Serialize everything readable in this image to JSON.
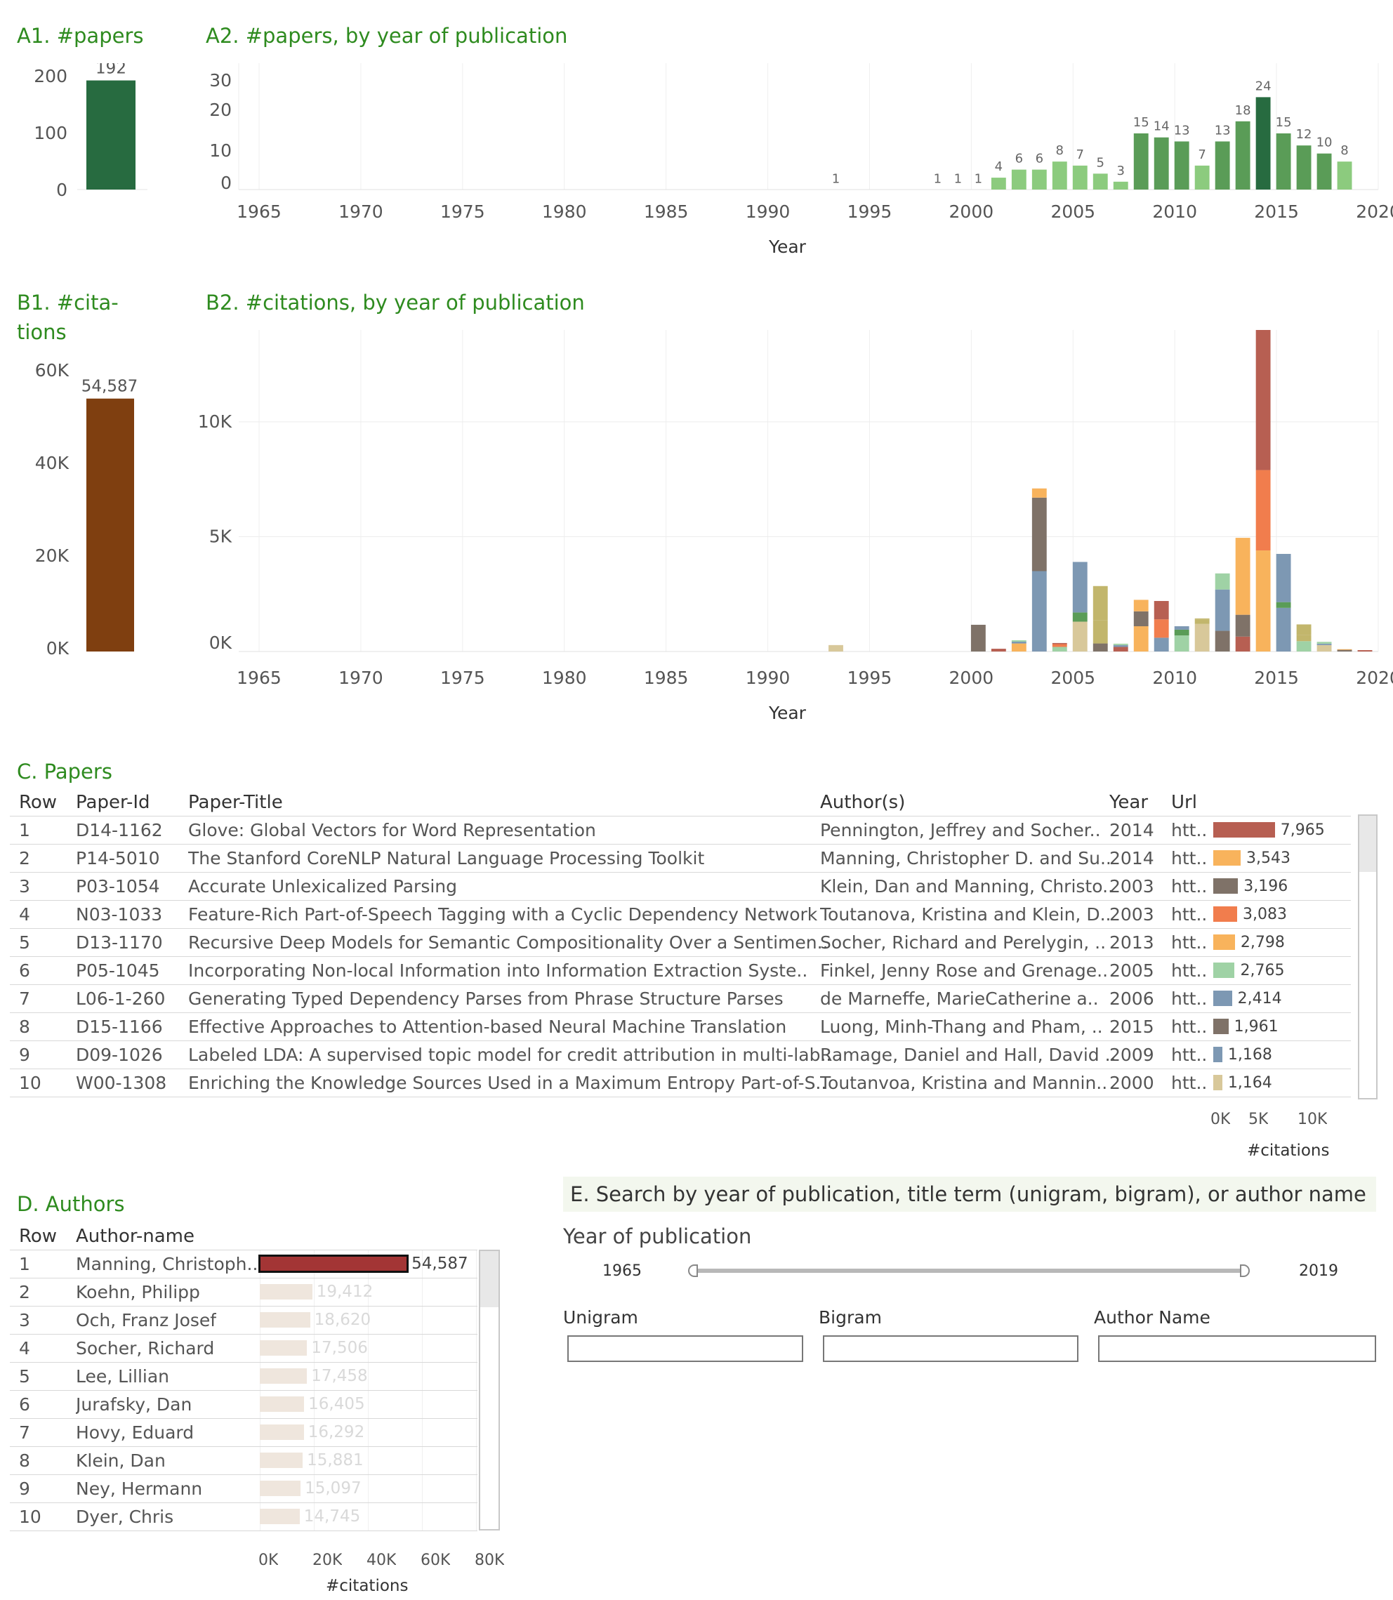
{
  "panels": {
    "a1_title": "A1. #papers",
    "a2_title": "A2. #papers, by year of publication",
    "b1_title_line1": "B1. #cita-",
    "b1_title_line2": "tions",
    "b2_title": "B2. #citations, by year of publication",
    "c_title": "C. Papers",
    "d_title": "D. Authors",
    "e_title": "E. Search by year of publication, title term (unigram, bigram), or  author name"
  },
  "colors": {
    "title_green": "#2e8b1f",
    "papers_total": "#276b40",
    "citations_total": "#7f3f10",
    "author_highlight": "#a33535",
    "author_faded": "#efe6dd"
  },
  "chart_data": [
    {
      "id": "A1",
      "type": "bar",
      "categories": [
        ""
      ],
      "values": [
        192
      ],
      "data_labels": [
        "192"
      ],
      "yticks": [
        "0",
        "100",
        "200"
      ],
      "ylim": [
        0,
        210
      ]
    },
    {
      "id": "A2",
      "type": "bar",
      "x": [
        1993,
        1998,
        1999,
        2000,
        2001,
        2002,
        2003,
        2004,
        2005,
        2006,
        2007,
        2008,
        2009,
        2010,
        2011,
        2012,
        2013,
        2014,
        2015,
        2016,
        2017,
        2018
      ],
      "values": [
        1,
        1,
        1,
        1,
        4,
        6,
        6,
        8,
        7,
        5,
        3,
        15,
        14,
        13,
        7,
        13,
        18,
        24,
        15,
        12,
        10,
        8
      ],
      "xticks": [
        "1965",
        "1970",
        "1975",
        "1980",
        "1985",
        "1990",
        "1995",
        "2000",
        "2005",
        "2010",
        "2015",
        "2020"
      ],
      "yticks": [
        "0",
        "10",
        "20",
        "30"
      ],
      "xlabel": "Year",
      "xlim": [
        1964,
        2020
      ],
      "ylim": [
        0,
        30
      ],
      "grid": true
    },
    {
      "id": "B1",
      "type": "bar",
      "categories": [
        ""
      ],
      "values": [
        54587
      ],
      "data_labels": [
        "54,587"
      ],
      "yticks": [
        "0K",
        "20K",
        "40K",
        "60K"
      ],
      "ylim": [
        0,
        60000
      ]
    },
    {
      "id": "B2",
      "type": "bar",
      "stacked": true,
      "x": [
        1993,
        2000,
        2001,
        2002,
        2003,
        2004,
        2005,
        2006,
        2007,
        2008,
        2009,
        2010,
        2011,
        2012,
        2013,
        2014,
        2015,
        2016,
        2017,
        2018,
        2019
      ],
      "series": [
        {
          "values": [
            280,
            1164,
            120,
            350,
            3500,
            200,
            1300,
            350,
            200,
            1100,
            600,
            700,
            1200,
            900,
            650,
            4400,
            1900,
            450,
            280,
            60,
            60
          ]
        },
        {
          "values": [
            0,
            0,
            0,
            80,
            3200,
            120,
            400,
            1000,
            80,
            650,
            800,
            250,
            180,
            1800,
            950,
            3500,
            250,
            280,
            60,
            20,
            0
          ]
        },
        {
          "values": [
            0,
            0,
            0,
            60,
            400,
            50,
            2200,
            1500,
            60,
            500,
            800,
            150,
            60,
            700,
            3350,
            6500,
            2100,
            450,
            80,
            20,
            0
          ]
        }
      ],
      "xticks": [
        "1965",
        "1970",
        "1975",
        "1980",
        "1985",
        "1990",
        "1995",
        "2000",
        "2005",
        "2010",
        "2015",
        "2020"
      ],
      "yticks": [
        "0K",
        "5K",
        "10K"
      ],
      "xlabel": "Year",
      "xlim": [
        1964,
        2020
      ],
      "ylim": [
        0,
        14000
      ],
      "grid": true
    }
  ],
  "papers": {
    "headers": [
      "Row",
      "Paper-Id",
      "Paper-Title",
      "Author(s)",
      "Year",
      "Url"
    ],
    "axis_ticks": [
      "0K",
      "5K",
      "10K"
    ],
    "axis_label": "#citations",
    "rows": [
      {
        "row": "1",
        "id": "D14-1162",
        "title": "Glove: Global Vectors for Word Representation",
        "authors": "Pennington, Jeffrey and Socher..",
        "year": "2014",
        "url": "htt..",
        "citations": 7965,
        "citations_label": "7,965",
        "color": "#b75f52"
      },
      {
        "row": "2",
        "id": "P14-5010",
        "title": "The Stanford CoreNLP Natural Language Processing Toolkit",
        "authors": "Manning, Christopher D. and Su..",
        "year": "2014",
        "url": "htt..",
        "citations": 3543,
        "citations_label": "3,543",
        "color": "#f8b35c"
      },
      {
        "row": "3",
        "id": "P03-1054",
        "title": "Accurate Unlexicalized Parsing",
        "authors": "Klein, Dan and Manning, Christo..",
        "year": "2003",
        "url": "htt..",
        "citations": 3196,
        "citations_label": "3,196",
        "color": "#7f7268"
      },
      {
        "row": "4",
        "id": "N03-1033",
        "title": "Feature-Rich Part-of-Speech Tagging with a Cyclic Dependency Network",
        "authors": "Toutanova, Kristina and Klein, D..",
        "year": "2003",
        "url": "htt..",
        "citations": 3083,
        "citations_label": "3,083",
        "color": "#f17d4d"
      },
      {
        "row": "5",
        "id": "D13-1170",
        "title": "Recursive Deep Models for Semantic Compositionality Over a Sentimen..",
        "authors": "Socher, Richard and Perelygin, ..",
        "year": "2013",
        "url": "htt..",
        "citations": 2798,
        "citations_label": "2,798",
        "color": "#f8b35c"
      },
      {
        "row": "6",
        "id": "P05-1045",
        "title": "Incorporating Non-local Information into Information Extraction Syste..",
        "authors": "Finkel, Jenny Rose and Grenage..",
        "year": "2005",
        "url": "htt..",
        "citations": 2765,
        "citations_label": "2,765",
        "color": "#9fd2a5"
      },
      {
        "row": "7",
        "id": "L06-1-260",
        "title": "Generating Typed Dependency Parses from Phrase Structure Parses",
        "authors": "de Marneffe, MarieCatherine a..",
        "year": "2006",
        "url": "htt..",
        "citations": 2414,
        "citations_label": "2,414",
        "color": "#7d98b3"
      },
      {
        "row": "8",
        "id": "D15-1166",
        "title": "Effective Approaches to Attention-based Neural Machine Translation",
        "authors": "Luong, Minh-Thang and Pham, ..",
        "year": "2015",
        "url": "htt..",
        "citations": 1961,
        "citations_label": "1,961",
        "color": "#7f7268"
      },
      {
        "row": "9",
        "id": "D09-1026",
        "title": "Labeled LDA: A supervised topic model for credit attribution in multi-lab..",
        "authors": "Ramage, Daniel and Hall, David ..",
        "year": "2009",
        "url": "htt..",
        "citations": 1168,
        "citations_label": "1,168",
        "color": "#7d98b3"
      },
      {
        "row": "10",
        "id": "W00-1308",
        "title": "Enriching the Knowledge Sources Used in a Maximum Entropy Part-of-S..",
        "authors": "Toutanvoa, Kristina and Mannin..",
        "year": "2000",
        "url": "htt..",
        "citations": 1164,
        "citations_label": "1,164",
        "color": "#d8c89a"
      }
    ]
  },
  "authors": {
    "headers": [
      "Row",
      "Author-name"
    ],
    "axis_ticks": [
      "0K",
      "20K",
      "40K",
      "60K",
      "80K"
    ],
    "axis_label": "#citations",
    "rows": [
      {
        "row": "1",
        "name": "Manning, Christoph..",
        "citations": 54587,
        "citations_label": "54,587",
        "highlight": true
      },
      {
        "row": "2",
        "name": "Koehn, Philipp",
        "citations": 19412,
        "citations_label": "19,412",
        "highlight": false
      },
      {
        "row": "3",
        "name": "Och, Franz Josef",
        "citations": 18620,
        "citations_label": "18,620",
        "highlight": false
      },
      {
        "row": "4",
        "name": "Socher, Richard",
        "citations": 17506,
        "citations_label": "17,506",
        "highlight": false
      },
      {
        "row": "5",
        "name": "Lee, Lillian",
        "citations": 17458,
        "citations_label": "17,458",
        "highlight": false
      },
      {
        "row": "6",
        "name": "Jurafsky, Dan",
        "citations": 16405,
        "citations_label": "16,405",
        "highlight": false
      },
      {
        "row": "7",
        "name": "Hovy, Eduard",
        "citations": 16292,
        "citations_label": "16,292",
        "highlight": false
      },
      {
        "row": "8",
        "name": "Klein, Dan",
        "citations": 15881,
        "citations_label": "15,881",
        "highlight": false
      },
      {
        "row": "9",
        "name": "Ney, Hermann",
        "citations": 15097,
        "citations_label": "15,097",
        "highlight": false
      },
      {
        "row": "10",
        "name": "Dyer, Chris",
        "citations": 14745,
        "citations_label": "14,745",
        "highlight": false
      }
    ]
  },
  "search": {
    "year_label": "Year of publication",
    "year_min": "1965",
    "year_max": "2019",
    "unigram_label": "Unigram",
    "bigram_label": "Bigram",
    "author_label": "Author Name",
    "unigram_value": "",
    "bigram_value": "",
    "author_value": ""
  }
}
